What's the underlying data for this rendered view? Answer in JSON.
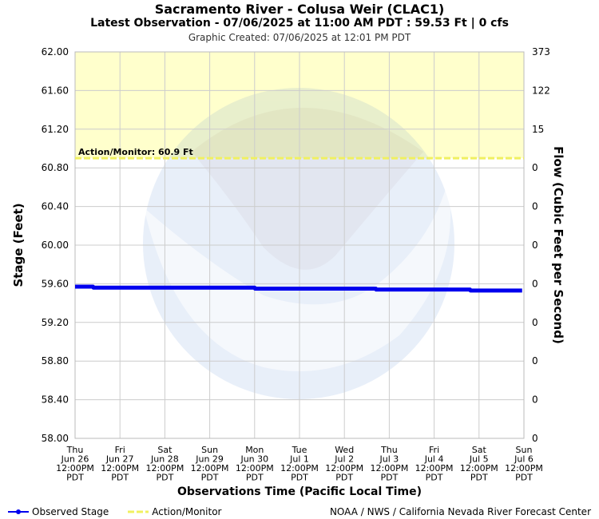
{
  "header": {
    "title": "Sacramento River - Colusa Weir (CLAC1)",
    "latest": "Latest Observation - 07/06/2025 at 11:00 AM PDT : 59.53 Ft | 0 cfs",
    "created": "Graphic Created: 07/06/2025 at 12:01 PM PDT"
  },
  "footer": {
    "legend_observed": "Observed Stage",
    "legend_action": "Action/Monitor",
    "credit": "NOAA / NWS / California Nevada River Forecast Center"
  },
  "colors": {
    "observed": "#0000ee",
    "action": "#f0f060",
    "action_zone": "#ffffcc",
    "grid": "#cccccc"
  },
  "chart_data": {
    "type": "line",
    "xlabel": "Observations Time (Pacific Local Time)",
    "ylabel": "Stage (Feet)",
    "y2label": "Flow (Cubic Feet per Second)",
    "ylim": [
      58.0,
      62.0
    ],
    "y_ticks": [
      "58.00",
      "58.40",
      "58.80",
      "59.20",
      "59.60",
      "60.00",
      "60.40",
      "60.80",
      "61.20",
      "61.60",
      "62.00"
    ],
    "y2_ticks": [
      "0",
      "0",
      "0",
      "0",
      "0",
      "0",
      "0",
      "0",
      "15",
      "122",
      "373"
    ],
    "x_ticks": [
      [
        "Thu",
        "Jun 26",
        "12:00PM",
        "PDT"
      ],
      [
        "Fri",
        "Jun 27",
        "12:00PM",
        "PDT"
      ],
      [
        "Sat",
        "Jun 28",
        "12:00PM",
        "PDT"
      ],
      [
        "Sun",
        "Jun 29",
        "12:00PM",
        "PDT"
      ],
      [
        "Mon",
        "Jun 30",
        "12:00PM",
        "PDT"
      ],
      [
        "Tue",
        "Jul 1",
        "12:00PM",
        "PDT"
      ],
      [
        "Wed",
        "Jul 2",
        "12:00PM",
        "PDT"
      ],
      [
        "Thu",
        "Jul 3",
        "12:00PM",
        "PDT"
      ],
      [
        "Fri",
        "Jul 4",
        "12:00PM",
        "PDT"
      ],
      [
        "Sat",
        "Jul 5",
        "12:00PM",
        "PDT"
      ],
      [
        "Sun",
        "Jul 6",
        "12:00PM",
        "PDT"
      ]
    ],
    "x_range_days": [
      0,
      10
    ],
    "action_stage": 60.9,
    "action_label": "Action/Monitor: 60.9 Ft",
    "series": [
      {
        "name": "Observed Stage",
        "x_days": [
          0,
          0.4,
          0.41,
          4.0,
          4.01,
          6.7,
          6.71,
          8.8,
          8.81,
          9.96
        ],
        "values": [
          59.57,
          59.57,
          59.56,
          59.56,
          59.55,
          59.55,
          59.54,
          59.54,
          59.53,
          59.53
        ]
      }
    ],
    "grid": true
  }
}
